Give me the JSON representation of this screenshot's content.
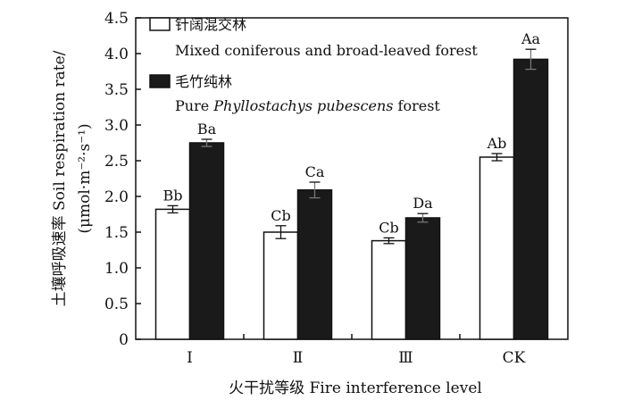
{
  "chart_data": {
    "type": "bar",
    "categories": [
      "Ⅰ",
      "Ⅱ",
      "Ⅲ",
      "CK"
    ],
    "series": [
      {
        "name": "针阔混交林",
        "name_en": "Mixed coniferous and broad-leaved forest",
        "color": "#ffffff",
        "values": [
          1.82,
          1.5,
          1.38,
          2.55
        ],
        "errors": [
          0.05,
          0.09,
          0.04,
          0.05
        ],
        "labels": [
          "Bb",
          "Cb",
          "Cb",
          "Ab"
        ]
      },
      {
        "name": "毛竹纯林",
        "name_en_prefix": "Pure ",
        "name_en_italic": "Phyllostachys pubescens",
        "name_en_suffix": " forest",
        "color": "#1a1a1a",
        "values": [
          2.75,
          2.09,
          1.7,
          3.92
        ],
        "errors": [
          0.05,
          0.11,
          0.06,
          0.14
        ],
        "labels": [
          "Ba",
          "Ca",
          "Da",
          "Aa"
        ]
      }
    ],
    "xlabel": "火干扰等级 Fire interference level",
    "ylabel_line1": "土壤呼吸速率 Soil respiration rate/",
    "ylabel_line2": "(μmol·m⁻²·s⁻¹)",
    "ylim": [
      0,
      4.5
    ],
    "yticks": [
      "0",
      "0.5",
      "1.0",
      "1.5",
      "2.0",
      "2.5",
      "3.0",
      "3.5",
      "4.0",
      "4.5"
    ],
    "grid": false,
    "legend_position": "top-left"
  }
}
